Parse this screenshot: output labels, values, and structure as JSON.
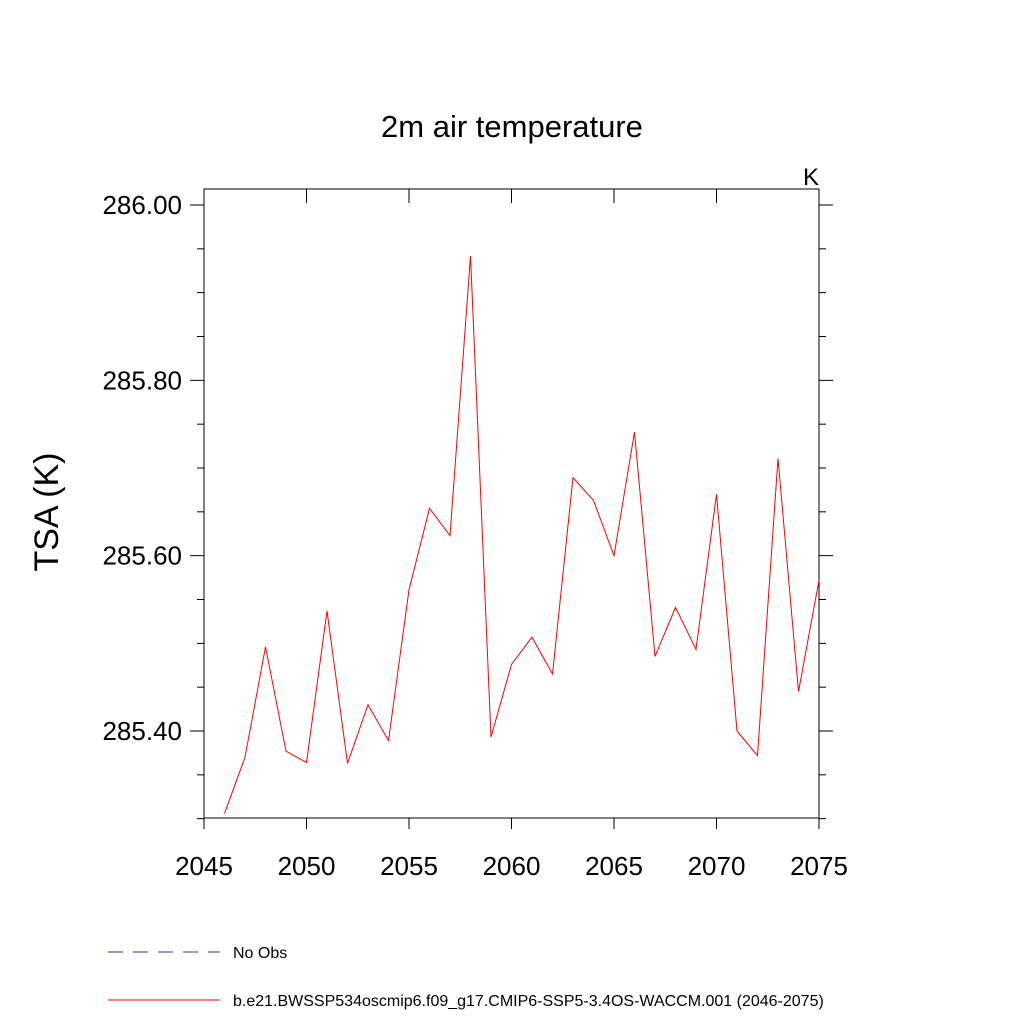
{
  "chart_data": {
    "type": "line",
    "title": "2m air temperature",
    "units": "K",
    "xlabel": "",
    "ylabel": "TSA  (K)",
    "xlim": [
      2045,
      2075
    ],
    "ylim": [
      285.3,
      286.02
    ],
    "x_ticks": [
      2045,
      2050,
      2055,
      2060,
      2065,
      2070,
      2075
    ],
    "x_tick_labels": [
      "2045",
      "2050",
      "2055",
      "2060",
      "2065",
      "2070",
      "2075"
    ],
    "y_ticks": [
      285.4,
      285.6,
      285.8,
      286.0
    ],
    "y_tick_labels": [
      "285.40",
      "285.60",
      "285.80",
      "286.00"
    ],
    "y_minor_step": 0.05,
    "grid": false,
    "legend_position": "bottom-left",
    "series": [
      {
        "name": "No Obs",
        "color": "#3a3aa0",
        "style": "dashed",
        "x": [],
        "values": []
      },
      {
        "name": "b.e21.BWSSP534oscmip6.f09_g17.CMIP6-SSP5-3.4OS-WACCM.001 (2046-2075)",
        "color": "#ff0000",
        "style": "solid",
        "x": [
          2046,
          2047,
          2048,
          2049,
          2050,
          2051,
          2052,
          2053,
          2054,
          2055,
          2056,
          2057,
          2058,
          2059,
          2060,
          2061,
          2062,
          2063,
          2064,
          2065,
          2066,
          2067,
          2068,
          2069,
          2070,
          2071,
          2072,
          2073,
          2074,
          2075
        ],
        "values": [
          285.306,
          285.37,
          285.496,
          285.377,
          285.364,
          285.537,
          285.363,
          285.43,
          285.389,
          285.561,
          285.654,
          285.623,
          285.942,
          285.393,
          285.476,
          285.507,
          285.465,
          285.689,
          285.663,
          285.6,
          285.741,
          285.485,
          285.541,
          285.493,
          285.67,
          285.4,
          285.372,
          285.711,
          285.445,
          285.572
        ]
      }
    ]
  }
}
